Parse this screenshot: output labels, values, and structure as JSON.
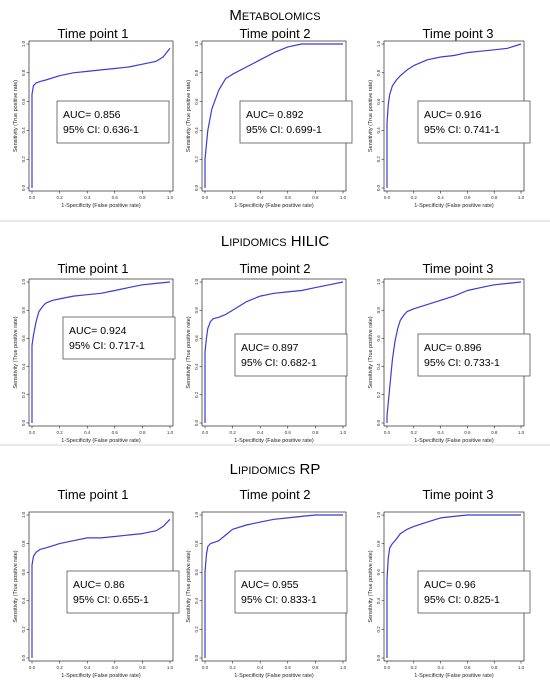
{
  "sections": [
    {
      "title_main": "M",
      "title_rest": "ETABOLOMICS",
      "title_suffix": ""
    },
    {
      "title_main": "L",
      "title_rest": "IPIDOMICS",
      "title_suffix": " HILIC"
    },
    {
      "title_main": "L",
      "title_rest": "IPIDOMICS",
      "title_suffix": " RP"
    }
  ],
  "colors": {
    "curve": "#3b3bd6",
    "divider": "#c8c8c8"
  },
  "chart_data": [
    {
      "type": "line",
      "title": "Time point 1",
      "section": "Metabolomics",
      "xlabel": "1-Specificity (False positive rate)",
      "ylabel": "Sensitivity (True positive rate)",
      "xlim": [
        0,
        1
      ],
      "ylim": [
        0,
        1
      ],
      "xticks": [
        "0.0",
        "0.2",
        "0.4",
        "0.6",
        "0.8",
        "1.0"
      ],
      "yticks": [
        "0.0",
        "0.2",
        "0.4",
        "0.6",
        "0.8",
        "1.0"
      ],
      "annotation": {
        "auc": "AUC= 0.856",
        "ci": "95% CI: 0.636-1"
      },
      "series": [
        {
          "x": [
            0,
            0,
            0.01,
            0.03,
            0.06,
            0.1,
            0.2,
            0.3,
            0.4,
            0.5,
            0.6,
            0.7,
            0.8,
            0.9,
            0.95,
            1.0
          ],
          "y": [
            0,
            0.65,
            0.71,
            0.73,
            0.74,
            0.75,
            0.78,
            0.8,
            0.81,
            0.82,
            0.83,
            0.84,
            0.86,
            0.88,
            0.91,
            0.97
          ]
        }
      ]
    },
    {
      "type": "line",
      "title": "Time point 2",
      "section": "Metabolomics",
      "xlabel": "1-Specificity (False positive rate)",
      "ylabel": "Sensitivity (True positive rate)",
      "xlim": [
        0,
        1
      ],
      "ylim": [
        0,
        1
      ],
      "xticks": [
        "0.0",
        "0.2",
        "0.4",
        "0.6",
        "0.8",
        "1.0"
      ],
      "yticks": [
        "0.0",
        "0.2",
        "0.4",
        "0.6",
        "0.8",
        "1.0"
      ],
      "annotation": {
        "auc": "AUC= 0.892",
        "ci": "95% CI: 0.699-1"
      },
      "series": [
        {
          "x": [
            0,
            0,
            0.02,
            0.05,
            0.1,
            0.15,
            0.2,
            0.3,
            0.4,
            0.5,
            0.6,
            0.7,
            0.8,
            1.0
          ],
          "y": [
            0,
            0.2,
            0.4,
            0.55,
            0.68,
            0.76,
            0.79,
            0.84,
            0.89,
            0.94,
            0.98,
            1.0,
            1.0,
            1.0
          ]
        }
      ]
    },
    {
      "type": "line",
      "title": "Time point 3",
      "section": "Metabolomics",
      "xlabel": "1-Specificity (False positive rate)",
      "ylabel": "Sensitivity (True positive rate)",
      "xlim": [
        0,
        1
      ],
      "ylim": [
        0,
        1
      ],
      "xticks": [
        "0.0",
        "0.2",
        "0.4",
        "0.6",
        "0.8",
        "1.0"
      ],
      "yticks": [
        "0.0",
        "0.2",
        "0.4",
        "0.6",
        "0.8",
        "1.0"
      ],
      "annotation": {
        "auc": "AUC= 0.916",
        "ci": "95% CI: 0.741-1"
      },
      "series": [
        {
          "x": [
            0,
            0,
            0.01,
            0.02,
            0.04,
            0.07,
            0.1,
            0.15,
            0.2,
            0.3,
            0.4,
            0.5,
            0.6,
            0.7,
            0.8,
            0.9,
            1.0
          ],
          "y": [
            0,
            0.45,
            0.58,
            0.65,
            0.71,
            0.75,
            0.78,
            0.82,
            0.85,
            0.89,
            0.91,
            0.92,
            0.94,
            0.95,
            0.96,
            0.97,
            1.0
          ]
        }
      ]
    },
    {
      "type": "line",
      "title": "Time point 1",
      "section": "Lipidomics HILIC",
      "xlabel": "1-Specificity (False positive rate)",
      "ylabel": "Sensitivity (True positive rate)",
      "xlim": [
        0,
        1
      ],
      "ylim": [
        0,
        1
      ],
      "xticks": [
        "0.0",
        "0.2",
        "0.4",
        "0.6",
        "0.8",
        "1.0"
      ],
      "yticks": [
        "0.0",
        "0.2",
        "0.4",
        "0.6",
        "0.8",
        "1.0"
      ],
      "annotation": {
        "auc": "AUC= 0.924",
        "ci": "95% CI: 0.717-1"
      },
      "series": [
        {
          "x": [
            0,
            0,
            0.01,
            0.03,
            0.05,
            0.08,
            0.1,
            0.15,
            0.2,
            0.3,
            0.4,
            0.5,
            0.6,
            0.7,
            0.8,
            0.9,
            1.0
          ],
          "y": [
            0,
            0.55,
            0.62,
            0.72,
            0.79,
            0.83,
            0.85,
            0.87,
            0.88,
            0.9,
            0.91,
            0.92,
            0.94,
            0.96,
            0.98,
            0.99,
            1.0
          ]
        }
      ]
    },
    {
      "type": "line",
      "title": "Time point 2",
      "section": "Lipidomics HILIC",
      "xlabel": "1-Specificity (False positive rate)",
      "ylabel": "Sensitivity (True positive rate)",
      "xlim": [
        0,
        1
      ],
      "ylim": [
        0,
        1
      ],
      "xticks": [
        "0.0",
        "0.2",
        "0.4",
        "0.6",
        "0.8",
        "1.0"
      ],
      "yticks": [
        "0.0",
        "0.2",
        "0.4",
        "0.6",
        "0.8",
        "1.0"
      ],
      "annotation": {
        "auc": "AUC= 0.897",
        "ci": "95% CI: 0.682-1"
      },
      "series": [
        {
          "x": [
            0,
            0,
            0.01,
            0.02,
            0.04,
            0.06,
            0.1,
            0.15,
            0.2,
            0.3,
            0.4,
            0.5,
            0.6,
            0.7,
            0.8,
            0.9,
            1.0
          ],
          "y": [
            0,
            0.5,
            0.6,
            0.67,
            0.72,
            0.74,
            0.75,
            0.77,
            0.8,
            0.86,
            0.9,
            0.92,
            0.93,
            0.94,
            0.96,
            0.98,
            1.0
          ]
        }
      ]
    },
    {
      "type": "line",
      "title": "Time point 3",
      "section": "Lipidomics HILIC",
      "xlabel": "1-Specificity (False positive rate)",
      "ylabel": "Sensitivity (True positive rate)",
      "xlim": [
        0,
        1
      ],
      "ylim": [
        0,
        1
      ],
      "xticks": [
        "0.0",
        "0.2",
        "0.4",
        "0.6",
        "0.8",
        "1.0"
      ],
      "yticks": [
        "0.0",
        "0.2",
        "0.4",
        "0.6",
        "0.8",
        "1.0"
      ],
      "annotation": {
        "auc": "AUC= 0.896",
        "ci": "95% CI: 0.733-1"
      },
      "series": [
        {
          "x": [
            0,
            0,
            0.02,
            0.04,
            0.06,
            0.08,
            0.1,
            0.13,
            0.15,
            0.2,
            0.3,
            0.4,
            0.5,
            0.6,
            0.7,
            0.8,
            0.9,
            1.0
          ],
          "y": [
            0,
            0.05,
            0.25,
            0.45,
            0.58,
            0.67,
            0.73,
            0.77,
            0.79,
            0.81,
            0.84,
            0.87,
            0.9,
            0.94,
            0.96,
            0.98,
            0.99,
            1.0
          ]
        }
      ]
    },
    {
      "type": "line",
      "title": "Time point 1",
      "section": "Lipidomics RP",
      "xlabel": "1-Specificity (False positive rate)",
      "ylabel": "Sensitivity (True positive rate)",
      "xlim": [
        0,
        1
      ],
      "ylim": [
        0,
        1
      ],
      "xticks": [
        "0.0",
        "0.2",
        "0.4",
        "0.6",
        "0.8",
        "1.0"
      ],
      "yticks": [
        "0.0",
        "0.2",
        "0.4",
        "0.6",
        "0.8",
        "1.0"
      ],
      "annotation": {
        "auc": "AUC= 0.86",
        "ci": "95% CI: 0.655-1"
      },
      "series": [
        {
          "x": [
            0,
            0,
            0.01,
            0.03,
            0.06,
            0.1,
            0.2,
            0.3,
            0.4,
            0.5,
            0.6,
            0.7,
            0.8,
            0.9,
            0.95,
            1.0
          ],
          "y": [
            0,
            0.65,
            0.71,
            0.74,
            0.76,
            0.77,
            0.8,
            0.82,
            0.84,
            0.84,
            0.85,
            0.86,
            0.87,
            0.89,
            0.92,
            0.97
          ]
        }
      ]
    },
    {
      "type": "line",
      "title": "Time point 2",
      "section": "Lipidomics RP",
      "xlabel": "1-Specificity (False positive rate)",
      "ylabel": "Sensitivity (True positive rate)",
      "xlim": [
        0,
        1
      ],
      "ylim": [
        0,
        1
      ],
      "xticks": [
        "0.0",
        "0.2",
        "0.4",
        "0.6",
        "0.8",
        "1.0"
      ],
      "yticks": [
        "0.0",
        "0.2",
        "0.4",
        "0.6",
        "0.8",
        "1.0"
      ],
      "annotation": {
        "auc": "AUC= 0.955",
        "ci": "95% CI: 0.833-1"
      },
      "series": [
        {
          "x": [
            0,
            0,
            0.01,
            0.02,
            0.04,
            0.07,
            0.1,
            0.15,
            0.2,
            0.3,
            0.4,
            0.5,
            0.6,
            0.7,
            0.8,
            0.9,
            1.0
          ],
          "y": [
            0,
            0.6,
            0.72,
            0.78,
            0.8,
            0.81,
            0.82,
            0.86,
            0.9,
            0.93,
            0.95,
            0.97,
            0.98,
            0.99,
            1.0,
            1.0,
            1.0
          ]
        }
      ]
    },
    {
      "type": "line",
      "title": "Time point 3",
      "section": "Lipidomics RP",
      "xlabel": "1-Specificity (False positive rate)",
      "ylabel": "Sensitivity (True positive rate)",
      "xlim": [
        0,
        1
      ],
      "ylim": [
        0,
        1
      ],
      "xticks": [
        "0.0",
        "0.2",
        "0.4",
        "0.6",
        "0.8",
        "1.0"
      ],
      "yticks": [
        "0.0",
        "0.2",
        "0.4",
        "0.6",
        "0.8",
        "1.0"
      ],
      "annotation": {
        "auc": "AUC= 0.96",
        "ci": "95% CI: 0.825-1"
      },
      "series": [
        {
          "x": [
            0,
            0,
            0.01,
            0.02,
            0.04,
            0.06,
            0.1,
            0.15,
            0.2,
            0.3,
            0.4,
            0.5,
            0.6,
            0.7,
            0.8,
            0.9,
            1.0
          ],
          "y": [
            0,
            0.55,
            0.7,
            0.77,
            0.8,
            0.82,
            0.87,
            0.9,
            0.92,
            0.95,
            0.98,
            0.99,
            1.0,
            1.0,
            1.0,
            1.0,
            1.0
          ]
        }
      ]
    }
  ]
}
